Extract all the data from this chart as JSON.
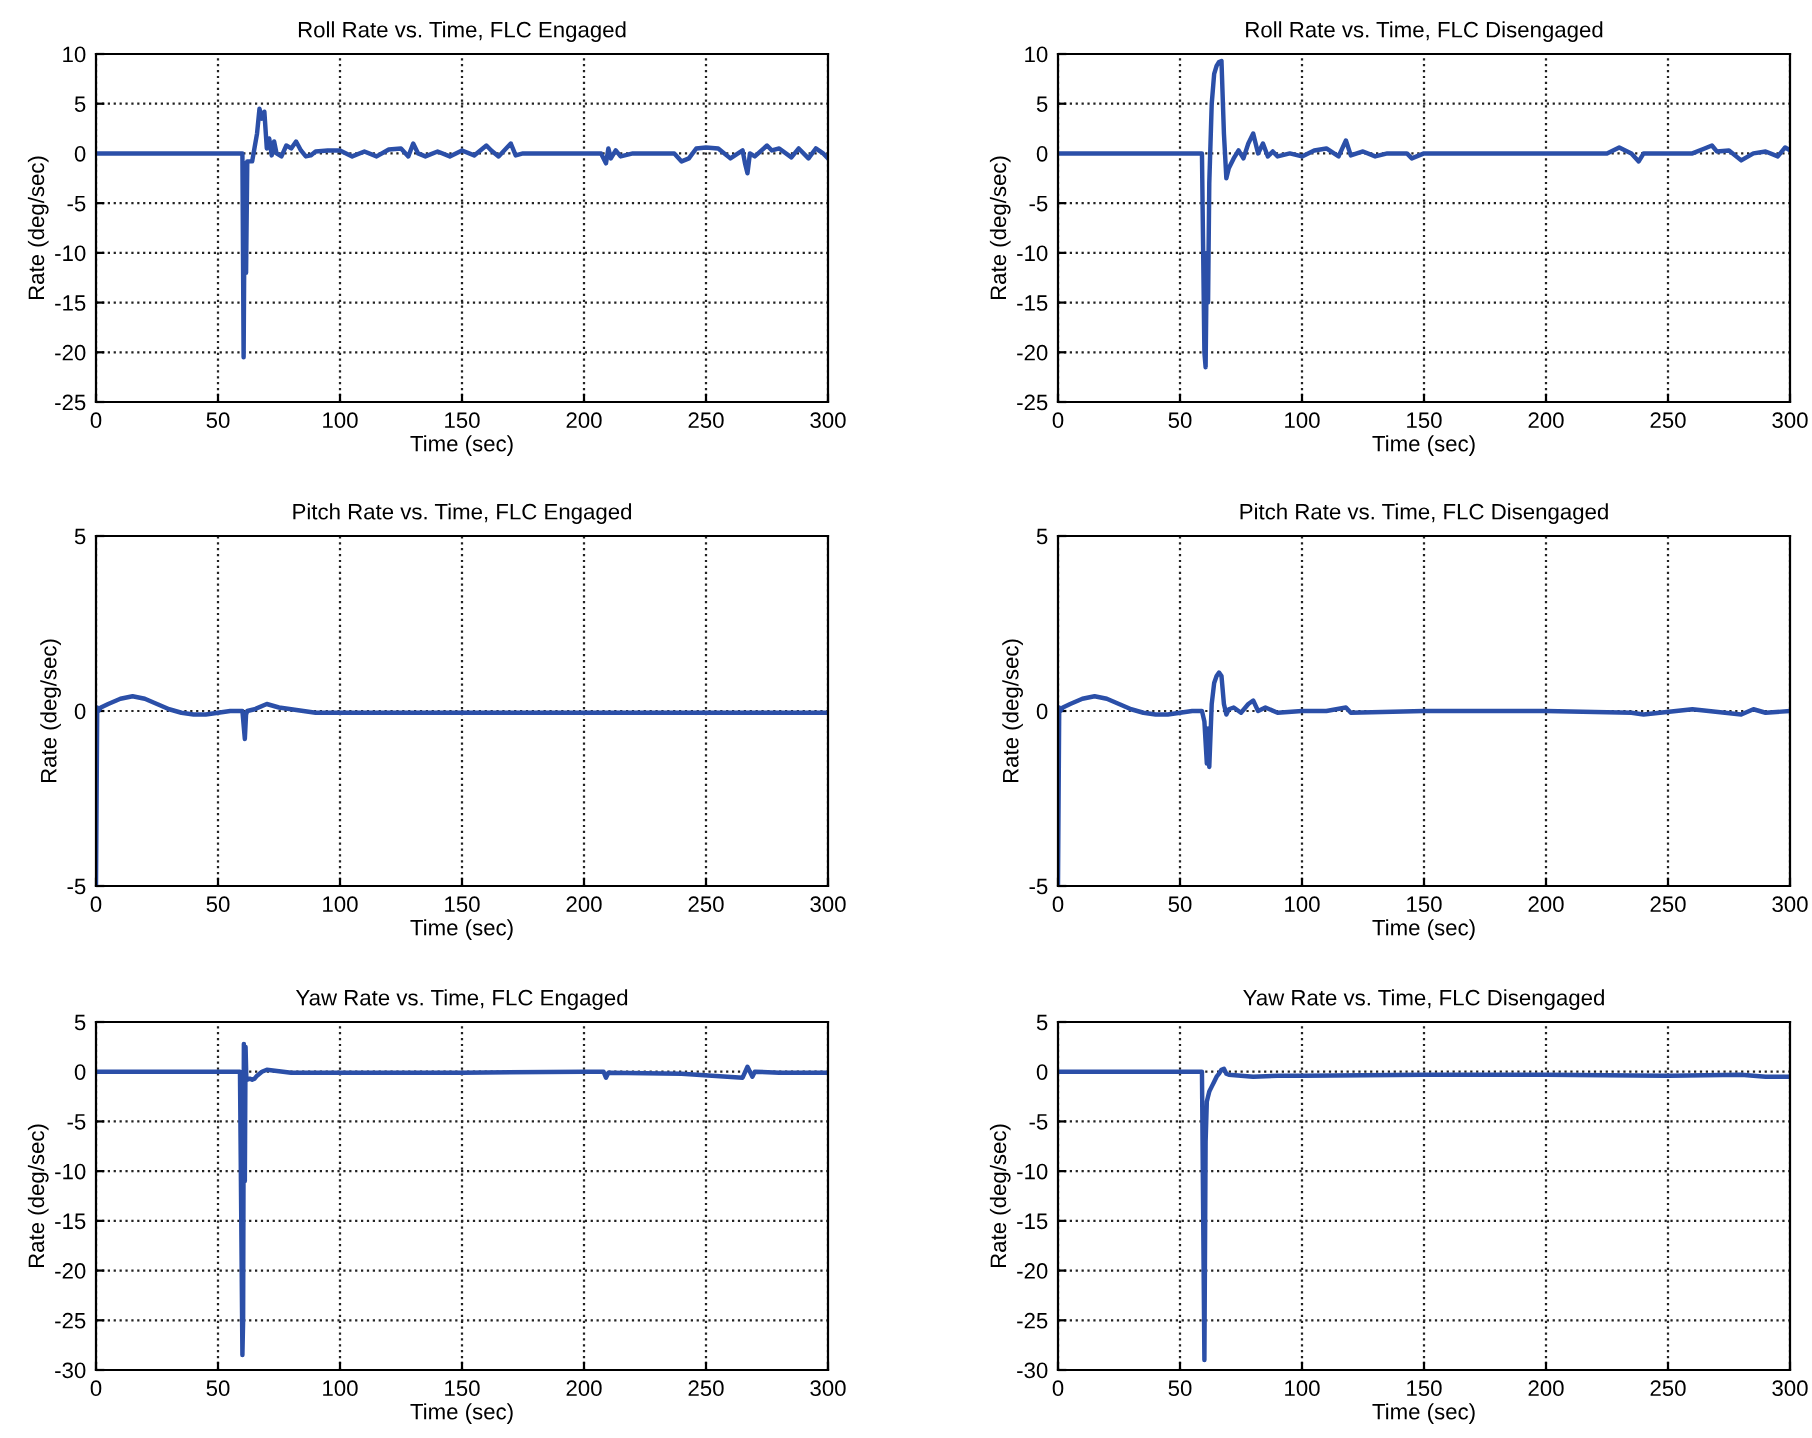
{
  "chart_data": [
    {
      "type": "line",
      "title": "Roll Rate vs. Time, FLC Engaged",
      "xlabel": "Time (sec)",
      "ylabel": "Rate (deg/sec)",
      "xlim": [
        0,
        300
      ],
      "xticks": [
        0,
        50,
        100,
        150,
        200,
        250,
        300
      ],
      "ylim": [
        -25,
        10
      ],
      "yticks": [
        -25,
        -20,
        -15,
        -10,
        -5,
        0,
        5,
        10
      ],
      "grid": true,
      "x": [
        0,
        60,
        60.5,
        61,
        61.5,
        62,
        64,
        66,
        67,
        68,
        69,
        70,
        71,
        72,
        73,
        74,
        76,
        78,
        80,
        82,
        84,
        86,
        88,
        90,
        95,
        100,
        105,
        110,
        115,
        120,
        125,
        128,
        130,
        132,
        135,
        140,
        145,
        150,
        155,
        160,
        162,
        165,
        170,
        172,
        175,
        180,
        200,
        207,
        209,
        210,
        211,
        213,
        215,
        220,
        237,
        240,
        243,
        246,
        250,
        255,
        260,
        265,
        266,
        267,
        268,
        270,
        275,
        277,
        280,
        285,
        288,
        292,
        295,
        298,
        300
      ],
      "series": [
        {
          "color": "#2b4fa8",
          "values": [
            0,
            0,
            -20.5,
            -1,
            -12,
            -0.8,
            -0.8,
            2,
            4.5,
            3.5,
            4.2,
            0.5,
            1.5,
            -0.2,
            1.2,
            0,
            -0.3,
            0.8,
            0.5,
            1.2,
            0.3,
            -0.3,
            -0.2,
            0.2,
            0.3,
            0.3,
            -0.3,
            0.2,
            -0.3,
            0.4,
            0.5,
            -0.3,
            1,
            0,
            -0.3,
            0.2,
            -0.3,
            0.3,
            -0.2,
            0.8,
            0.3,
            -0.3,
            1,
            -0.2,
            0,
            0,
            0,
            0,
            -1,
            0.5,
            -0.5,
            0.3,
            -0.3,
            0,
            0,
            -0.8,
            -0.5,
            0.5,
            0.6,
            0.5,
            -0.5,
            0.3,
            -1,
            -2,
            0,
            -0.3,
            0.8,
            0.3,
            0.5,
            -0.4,
            0.5,
            -0.5,
            0.5,
            0,
            -0.5
          ]
        }
      ]
    },
    {
      "type": "line",
      "title": "Roll Rate vs. Time, FLC Disengaged",
      "xlabel": "Time (sec)",
      "ylabel": "Rate (deg/sec)",
      "xlim": [
        0,
        300
      ],
      "xticks": [
        0,
        50,
        100,
        150,
        200,
        250,
        300
      ],
      "ylim": [
        -25,
        10
      ],
      "yticks": [
        -25,
        -20,
        -15,
        -10,
        -5,
        0,
        5,
        10
      ],
      "grid": true,
      "x": [
        0,
        59,
        60,
        60.5,
        61,
        61.5,
        62,
        63,
        64,
        65,
        66,
        67,
        68,
        69,
        70,
        72,
        74,
        76,
        78,
        80,
        82,
        84,
        86,
        88,
        90,
        95,
        100,
        105,
        110,
        115,
        118,
        120,
        125,
        130,
        135,
        140,
        143,
        145,
        150,
        195,
        210,
        225,
        230,
        235,
        238,
        240,
        250,
        260,
        265,
        268,
        270,
        275,
        280,
        285,
        290,
        295,
        298,
        300
      ],
      "series": [
        {
          "color": "#2b4fa8",
          "values": [
            0,
            0,
            -20,
            -21.5,
            -10,
            -15,
            -3,
            5,
            8,
            8.8,
            9.2,
            9.3,
            2,
            -2.5,
            -1.5,
            -0.5,
            0.3,
            -0.5,
            1,
            2,
            0,
            1,
            -0.3,
            0.2,
            -0.3,
            0,
            -0.3,
            0.3,
            0.5,
            -0.3,
            1.3,
            -0.2,
            0.2,
            -0.3,
            0,
            0,
            0,
            -0.5,
            0,
            0,
            0,
            0,
            0.6,
            0,
            -0.8,
            0,
            0,
            0,
            0.5,
            0.8,
            0.2,
            0.3,
            -0.7,
            0,
            0.2,
            -0.3,
            0.6,
            0.3
          ]
        }
      ]
    },
    {
      "type": "line",
      "title": "Pitch Rate vs. Time, FLC Engaged",
      "xlabel": "Time (sec)",
      "ylabel": "Rate (deg/sec)",
      "xlim": [
        0,
        300
      ],
      "xticks": [
        0,
        50,
        100,
        150,
        200,
        250,
        300
      ],
      "ylim": [
        -5,
        5
      ],
      "yticks": [
        -5,
        0,
        5
      ],
      "grid": true,
      "x": [
        0,
        0.5,
        1,
        2,
        5,
        10,
        15,
        20,
        25,
        30,
        35,
        40,
        45,
        50,
        55,
        60,
        61,
        61.5,
        62,
        65,
        70,
        75,
        80,
        85,
        90,
        100,
        150,
        200,
        250,
        300
      ],
      "series": [
        {
          "color": "#2b4fa8",
          "values": [
            -5,
            0.1,
            0,
            0.1,
            0.2,
            0.35,
            0.42,
            0.35,
            0.2,
            0.05,
            -0.05,
            -0.1,
            -0.1,
            -0.05,
            0,
            0,
            -0.8,
            -0.1,
            0,
            0.05,
            0.2,
            0.1,
            0.05,
            0,
            -0.05,
            -0.05,
            -0.05,
            -0.05,
            -0.05,
            -0.05
          ]
        }
      ]
    },
    {
      "type": "line",
      "title": "Pitch Rate vs. Time, FLC Disengaged",
      "xlabel": "Time (sec)",
      "ylabel": "Rate (deg/sec)",
      "xlim": [
        0,
        300
      ],
      "xticks": [
        0,
        50,
        100,
        150,
        200,
        250,
        300
      ],
      "ylim": [
        -5,
        5
      ],
      "yticks": [
        -5,
        0,
        5
      ],
      "grid": true,
      "x": [
        0,
        0.5,
        1,
        2,
        5,
        10,
        15,
        20,
        25,
        30,
        35,
        40,
        45,
        50,
        55,
        59,
        60,
        61,
        61.5,
        62,
        63,
        64,
        65,
        66,
        67,
        68,
        69,
        70,
        72,
        75,
        78,
        80,
        82,
        85,
        90,
        100,
        110,
        118,
        120,
        150,
        200,
        235,
        240,
        260,
        280,
        285,
        290,
        300
      ],
      "series": [
        {
          "color": "#2b4fa8",
          "values": [
            -5,
            0.1,
            0,
            0.1,
            0.2,
            0.35,
            0.42,
            0.35,
            0.2,
            0.05,
            -0.05,
            -0.1,
            -0.1,
            -0.05,
            0,
            0,
            -0.3,
            -1.5,
            -0.5,
            -1.6,
            0.2,
            0.8,
            1.0,
            1.1,
            1.0,
            0.2,
            -0.1,
            0.05,
            0.1,
            -0.05,
            0.2,
            0.3,
            0,
            0.1,
            -0.05,
            0,
            0,
            0.1,
            -0.05,
            0,
            0,
            -0.05,
            -0.1,
            0.05,
            -0.1,
            0.05,
            -0.05,
            0
          ]
        }
      ]
    },
    {
      "type": "line",
      "title": "Yaw Rate vs. Time, FLC Engaged",
      "xlabel": "Time (sec)",
      "ylabel": "Rate (deg/sec)",
      "xlim": [
        0,
        300
      ],
      "xticks": [
        0,
        50,
        100,
        150,
        200,
        250,
        300
      ],
      "ylim": [
        -30,
        5
      ],
      "yticks": [
        -30,
        -25,
        -20,
        -15,
        -10,
        -5,
        0,
        5
      ],
      "grid": true,
      "x": [
        0,
        59,
        59.5,
        60,
        60.3,
        60.6,
        61,
        61.3,
        61.6,
        62,
        63,
        64,
        65,
        66,
        68,
        70,
        80,
        100,
        150,
        200,
        208,
        209,
        210,
        240,
        265,
        267,
        268,
        269,
        270,
        280,
        300
      ],
      "series": [
        {
          "color": "#2b4fa8",
          "values": [
            0,
            0,
            -14,
            -28.5,
            -25,
            2.8,
            -11,
            2.5,
            -0.5,
            -0.8,
            -0.7,
            -0.8,
            -0.7,
            -0.4,
            0,
            0.2,
            -0.1,
            -0.1,
            -0.1,
            0,
            0,
            -0.6,
            -0.1,
            -0.2,
            -0.6,
            0.5,
            0,
            -0.5,
            0,
            -0.1,
            -0.1
          ]
        }
      ]
    },
    {
      "type": "line",
      "title": "Yaw Rate vs. Time, FLC Disengaged",
      "xlabel": "Time (sec)",
      "ylabel": "Rate (deg/sec)",
      "xlim": [
        0,
        300
      ],
      "xticks": [
        0,
        50,
        100,
        150,
        200,
        250,
        300
      ],
      "ylim": [
        -30,
        5
      ],
      "yticks": [
        -30,
        -25,
        -20,
        -15,
        -10,
        -5,
        0,
        5
      ],
      "grid": true,
      "x": [
        0,
        59,
        60,
        60.5,
        61,
        61.5,
        62,
        63,
        64,
        65,
        66,
        67,
        68,
        69,
        70,
        75,
        80,
        90,
        100,
        150,
        200,
        250,
        280,
        290,
        300
      ],
      "series": [
        {
          "color": "#2b4fa8",
          "values": [
            0,
            0,
            -29,
            -7,
            -3,
            -2.5,
            -2,
            -1.5,
            -1,
            -0.5,
            -0.2,
            0.2,
            0.3,
            -0.2,
            -0.3,
            -0.4,
            -0.5,
            -0.4,
            -0.4,
            -0.3,
            -0.3,
            -0.4,
            -0.3,
            -0.5,
            -0.5
          ]
        }
      ]
    }
  ]
}
